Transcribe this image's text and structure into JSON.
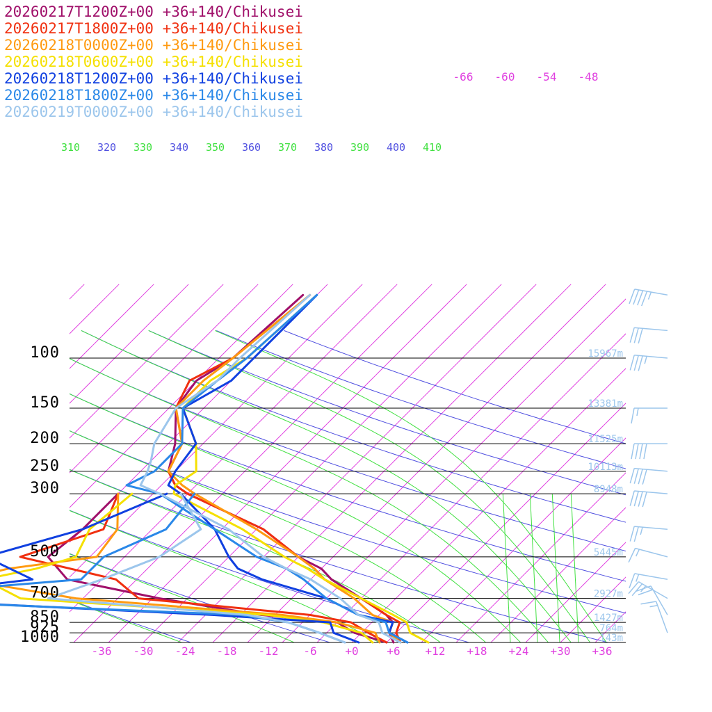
{
  "legend": [
    {
      "label": "20260217T1200Z+00 +36+140/Chikusei",
      "color": "#a0106a"
    },
    {
      "label": "20260217T1800Z+00 +36+140/Chikusei",
      "color": "#f03010"
    },
    {
      "label": "20260218T0000Z+00 +36+140/Chikusei",
      "color": "#ff9a10"
    },
    {
      "label": "20260218T0600Z+00 +36+140/Chikusei",
      "color": "#f5e000"
    },
    {
      "label": "20260218T1200Z+00 +36+140/Chikusei",
      "color": "#1040e0"
    },
    {
      "label": "20260218T1800Z+00 +36+140/Chikusei",
      "color": "#2a88e8"
    },
    {
      "label": "20260219T0000Z+00 +36+140/Chikusei",
      "color": "#9cc6ec"
    }
  ],
  "chart_data": {
    "type": "line",
    "pressure_levels": [
      100,
      150,
      200,
      250,
      300,
      500,
      700,
      850,
      925,
      1000
    ],
    "pressure_labels": [
      "100",
      "150",
      "200",
      "250",
      "300",
      "500",
      "700",
      "850",
      "925",
      "1000"
    ],
    "temperature_ticks": [
      -36,
      -30,
      -24,
      -18,
      -12,
      -6,
      0,
      6,
      12,
      18,
      24,
      30,
      36
    ],
    "temperature_tick_labels": [
      "-36",
      "-30",
      "-24",
      "-18",
      "-12",
      "-6",
      "+0",
      "+6",
      "+12",
      "+18",
      "+24",
      "+30",
      "+36"
    ],
    "upper_temperature_labels": [
      "-66",
      "-60",
      "-54",
      "-48"
    ],
    "theta_labels": [
      "310",
      "320",
      "330",
      "340",
      "350",
      "360",
      "370",
      "380",
      "390",
      "400",
      "410"
    ],
    "heights": [
      {
        "pressure": 100,
        "label": "15967m"
      },
      {
        "pressure": 150,
        "label": "13381m"
      },
      {
        "pressure": 200,
        "label": "11525m"
      },
      {
        "pressure": 250,
        "label": "10113m"
      },
      {
        "pressure": 300,
        "label": "8948m"
      },
      {
        "pressure": 500,
        "label": "5445m"
      },
      {
        "pressure": 700,
        "label": "2927m"
      },
      {
        "pressure": 850,
        "label": "1427m"
      },
      {
        "pressure": 925,
        "label": "764m"
      },
      {
        "pressure": 1000,
        "label": "143m"
      }
    ],
    "series": [
      {
        "name": "20260217T1200Z+00 +36+140/Chikusei",
        "color": "#a0106a",
        "temperature": [
          [
            60,
            -57
          ],
          [
            100,
            -58
          ],
          [
            120,
            -60
          ],
          [
            150,
            -59
          ],
          [
            200,
            -54
          ],
          [
            250,
            -51
          ],
          [
            280,
            -48
          ],
          [
            300,
            -45
          ],
          [
            400,
            -29
          ],
          [
            500,
            -20
          ],
          [
            550,
            -15
          ],
          [
            600,
            -12
          ],
          [
            700,
            -5
          ],
          [
            800,
            1
          ],
          [
            850,
            3
          ],
          [
            925,
            4
          ],
          [
            1000,
            6
          ]
        ],
        "dewpoint": [
          [
            300,
            -55
          ],
          [
            400,
            -55
          ],
          [
            500,
            -56
          ],
          [
            600,
            -50
          ],
          [
            700,
            -34
          ],
          [
            800,
            -17
          ],
          [
            850,
            -5
          ],
          [
            925,
            -1
          ],
          [
            1000,
            5
          ]
        ]
      },
      {
        "name": "20260217T1800Z+00 +36+140/Chikusei",
        "color": "#f03010",
        "temperature": [
          [
            60,
            -56
          ],
          [
            100,
            -58
          ],
          [
            120,
            -61
          ],
          [
            150,
            -59
          ],
          [
            200,
            -53
          ],
          [
            250,
            -51
          ],
          [
            280,
            -48
          ],
          [
            300,
            -45
          ],
          [
            400,
            -29
          ],
          [
            500,
            -20
          ],
          [
            550,
            -16
          ],
          [
            600,
            -13
          ],
          [
            700,
            -5
          ],
          [
            800,
            1
          ],
          [
            850,
            4
          ],
          [
            925,
            5
          ],
          [
            1000,
            7
          ]
        ],
        "dewpoint": [
          [
            300,
            -55
          ],
          [
            400,
            -52
          ],
          [
            500,
            -60
          ],
          [
            600,
            -43
          ],
          [
            700,
            -37
          ],
          [
            800,
            -10
          ],
          [
            850,
            -3
          ],
          [
            925,
            1
          ],
          [
            1000,
            5
          ]
        ]
      },
      {
        "name": "20260218T0000Z+00 +36+140/Chikusei",
        "color": "#ff9a10",
        "temperature": [
          [
            60,
            -56
          ],
          [
            100,
            -58
          ],
          [
            120,
            -59
          ],
          [
            150,
            -59
          ],
          [
            200,
            -53
          ],
          [
            250,
            -51
          ],
          [
            280,
            -47
          ],
          [
            300,
            -44
          ],
          [
            400,
            -30
          ],
          [
            500,
            -20
          ],
          [
            550,
            -16
          ],
          [
            600,
            -13
          ],
          [
            700,
            -6
          ],
          [
            800,
            -1
          ],
          [
            850,
            3
          ],
          [
            925,
            4
          ],
          [
            1000,
            7
          ]
        ],
        "dewpoint": [
          [
            300,
            -55
          ],
          [
            400,
            -50
          ],
          [
            500,
            -49
          ],
          [
            550,
            -60
          ],
          [
            600,
            -65
          ],
          [
            700,
            -46
          ],
          [
            800,
            -14
          ],
          [
            850,
            -5
          ],
          [
            925,
            2
          ],
          [
            1000,
            4
          ]
        ]
      },
      {
        "name": "20260218T0600Z+00 +36+140/Chikusei",
        "color": "#f5e000",
        "temperature": [
          [
            60,
            -55
          ],
          [
            100,
            -56
          ],
          [
            120,
            -58
          ],
          [
            150,
            -58
          ],
          [
            200,
            -51
          ],
          [
            250,
            -47
          ],
          [
            280,
            -48
          ],
          [
            300,
            -47
          ],
          [
            400,
            -32
          ],
          [
            500,
            -22
          ],
          [
            550,
            -17
          ],
          [
            600,
            -13
          ],
          [
            700,
            -5
          ],
          [
            800,
            2
          ],
          [
            850,
            5
          ],
          [
            925,
            7
          ],
          [
            1000,
            11
          ]
        ],
        "dewpoint": [
          [
            300,
            -53
          ],
          [
            400,
            -54
          ],
          [
            500,
            -52
          ],
          [
            550,
            -56
          ],
          [
            600,
            -62
          ],
          [
            700,
            -54
          ],
          [
            800,
            -16
          ],
          [
            850,
            -7
          ],
          [
            925,
            0
          ],
          [
            1000,
            3
          ]
        ]
      },
      {
        "name": "20260218T1200Z+00 +36+140/Chikusei",
        "color": "#1040e0",
        "temperature": [
          [
            60,
            -55
          ],
          [
            100,
            -55
          ],
          [
            120,
            -55
          ],
          [
            150,
            -58
          ],
          [
            200,
            -51
          ],
          [
            250,
            -50
          ],
          [
            280,
            -49
          ],
          [
            300,
            -46
          ],
          [
            400,
            -36
          ],
          [
            500,
            -30
          ],
          [
            550,
            -27
          ],
          [
            600,
            -22
          ],
          [
            700,
            -10
          ],
          [
            800,
            -3
          ],
          [
            850,
            3
          ],
          [
            925,
            4
          ],
          [
            1000,
            8
          ]
        ],
        "dewpoint": [
          [
            300,
            -48
          ],
          [
            400,
            -55
          ],
          [
            500,
            -65
          ],
          [
            600,
            -55
          ],
          [
            700,
            -75
          ],
          [
            800,
            -24
          ],
          [
            850,
            -6
          ],
          [
            925,
            -4
          ],
          [
            1000,
            1
          ]
        ]
      },
      {
        "name": "20260218T1800Z+00 +36+140/Chikusei",
        "color": "#2a88e8",
        "temperature": [
          [
            60,
            -55
          ],
          [
            100,
            -56
          ],
          [
            120,
            -57
          ],
          [
            150,
            -58
          ],
          [
            200,
            -53
          ],
          [
            250,
            -53
          ],
          [
            280,
            -55
          ],
          [
            300,
            -49
          ],
          [
            400,
            -36
          ],
          [
            500,
            -26
          ],
          [
            550,
            -20
          ],
          [
            600,
            -16
          ],
          [
            700,
            -10
          ],
          [
            800,
            -3
          ],
          [
            850,
            2
          ],
          [
            925,
            4
          ],
          [
            1000,
            8
          ]
        ],
        "dewpoint": [
          [
            300,
            -44
          ],
          [
            400,
            -43
          ],
          [
            500,
            -48
          ],
          [
            600,
            -48
          ],
          [
            700,
            -79
          ],
          [
            800,
            -20
          ],
          [
            850,
            -12
          ],
          [
            925,
            -6
          ],
          [
            1000,
            -1
          ]
        ]
      },
      {
        "name": "20260219T0000Z+00 +36+140/Chikusei",
        "color": "#9cc6ec",
        "temperature": [
          [
            60,
            -56
          ],
          [
            100,
            -57
          ],
          [
            120,
            -57
          ],
          [
            150,
            -59
          ],
          [
            200,
            -57
          ],
          [
            230,
            -55
          ],
          [
            250,
            -54
          ],
          [
            280,
            -53
          ],
          [
            300,
            -49
          ],
          [
            400,
            -34
          ],
          [
            500,
            -25
          ],
          [
            550,
            -20
          ],
          [
            600,
            -15
          ],
          [
            700,
            -8
          ],
          [
            800,
            -3
          ],
          [
            850,
            1
          ],
          [
            925,
            3
          ],
          [
            1000,
            7
          ]
        ],
        "dewpoint": [
          [
            300,
            -46
          ],
          [
            400,
            -38
          ],
          [
            500,
            -40
          ],
          [
            600,
            -45
          ],
          [
            700,
            -50
          ],
          [
            800,
            -19
          ],
          [
            850,
            -12
          ],
          [
            925,
            -6
          ],
          [
            1000,
            -1
          ]
        ]
      }
    ],
    "wind_barbs": [
      {
        "pressure": 60,
        "speed_kt": 45,
        "direction": 280
      },
      {
        "pressure": 80,
        "speed_kt": 30,
        "direction": 275
      },
      {
        "pressure": 100,
        "speed_kt": 35,
        "direction": 275
      },
      {
        "pressure": 150,
        "speed_kt": 15,
        "direction": 270
      },
      {
        "pressure": 200,
        "speed_kt": 40,
        "direction": 270
      },
      {
        "pressure": 250,
        "speed_kt": 40,
        "direction": 275
      },
      {
        "pressure": 300,
        "speed_kt": 40,
        "direction": 275
      },
      {
        "pressure": 400,
        "speed_kt": 25,
        "direction": 275
      },
      {
        "pressure": 500,
        "speed_kt": 15,
        "direction": 285
      },
      {
        "pressure": 600,
        "speed_kt": 15,
        "direction": 280
      },
      {
        "pressure": 700,
        "speed_kt": 25,
        "direction": 300
      },
      {
        "pressure": 800,
        "speed_kt": 20,
        "direction": 330
      },
      {
        "pressure": 925,
        "speed_kt": 15,
        "direction": 340
      }
    ],
    "colors": {
      "isotherm": "#e040e0",
      "dry_adiabat": "#5050e0",
      "moist_adiabat": "#40e040",
      "isobar": "#000000",
      "height_label": "#9cc6ec",
      "barb": "#9cc6ec"
    }
  }
}
